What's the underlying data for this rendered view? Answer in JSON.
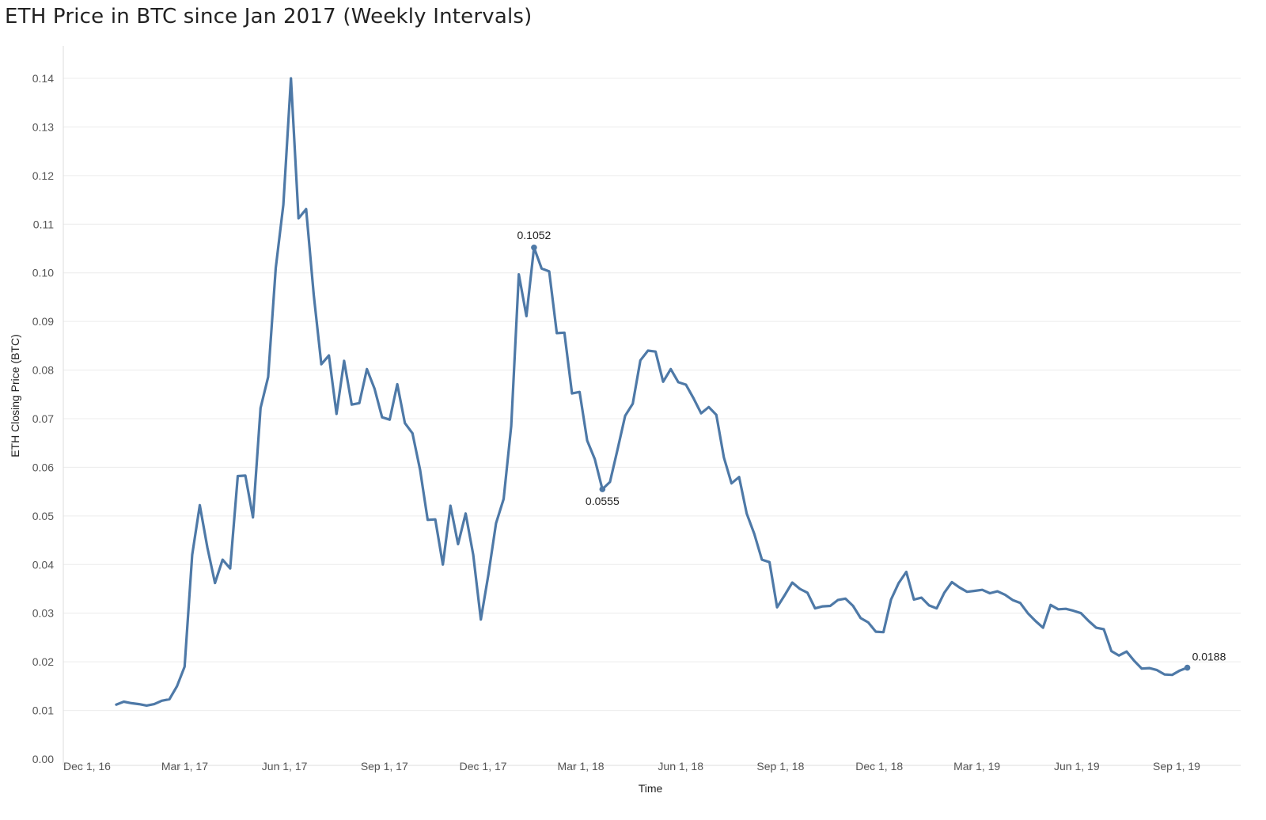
{
  "title": "ETH Price in BTC since Jan 2017 (Weekly Intervals)",
  "chart_data": {
    "type": "line",
    "title": "ETH Price in BTC since Jan 2017 (Weekly Intervals)",
    "xlabel": "Time",
    "ylabel": "ETH Closing Price (BTC)",
    "x_ticks": [
      "Dec 1, 16",
      "Mar 1, 17",
      "Jun 1, 17",
      "Sep 1, 17",
      "Dec 1, 17",
      "Mar 1, 18",
      "Jun 1, 18",
      "Sep 1, 18",
      "Dec 1, 18",
      "Mar 1, 19",
      "Jun 1, 19",
      "Sep 1, 19"
    ],
    "x_tick_dates": [
      "2016-12-01",
      "2017-03-01",
      "2017-06-01",
      "2017-09-01",
      "2017-12-01",
      "2018-03-01",
      "2018-06-01",
      "2018-09-01",
      "2018-12-01",
      "2019-03-01",
      "2019-06-01",
      "2019-09-01"
    ],
    "y_ticks": [
      "0.00",
      "0.01",
      "0.02",
      "0.03",
      "0.04",
      "0.05",
      "0.06",
      "0.07",
      "0.08",
      "0.09",
      "0.10",
      "0.11",
      "0.12",
      "0.13",
      "0.14"
    ],
    "ylim": [
      0,
      0.14
    ],
    "grid": true,
    "line_color": "#4e79a7",
    "series": [
      {
        "x": [
          "2017-01-02",
          "2017-01-09",
          "2017-01-16",
          "2017-01-23",
          "2017-01-30",
          "2017-02-06",
          "2017-02-13",
          "2017-02-20",
          "2017-02-27",
          "2017-03-06",
          "2017-03-13",
          "2017-03-20",
          "2017-03-27",
          "2017-04-03",
          "2017-04-10",
          "2017-04-17",
          "2017-04-24",
          "2017-05-01",
          "2017-05-08",
          "2017-05-15",
          "2017-05-22",
          "2017-05-29",
          "2017-06-05",
          "2017-06-12",
          "2017-06-19",
          "2017-06-26",
          "2017-07-03",
          "2017-07-10",
          "2017-07-17",
          "2017-07-24",
          "2017-07-31",
          "2017-08-07",
          "2017-08-14",
          "2017-08-21",
          "2017-08-28",
          "2017-09-04",
          "2017-09-11",
          "2017-09-18",
          "2017-09-25",
          "2017-10-02",
          "2017-10-09",
          "2017-10-16",
          "2017-10-23",
          "2017-10-30",
          "2017-11-06",
          "2017-11-13",
          "2017-11-20",
          "2017-11-27",
          "2017-12-04",
          "2017-12-11",
          "2017-12-18",
          "2017-12-25",
          "2018-01-01",
          "2018-01-08",
          "2018-01-15",
          "2018-01-22",
          "2018-01-29",
          "2018-02-05",
          "2018-02-12",
          "2018-02-19",
          "2018-02-26",
          "2018-03-05",
          "2018-03-12",
          "2018-03-19",
          "2018-03-26",
          "2018-04-02",
          "2018-04-09",
          "2018-04-16",
          "2018-04-23",
          "2018-04-30",
          "2018-05-07",
          "2018-05-14",
          "2018-05-21",
          "2018-05-28",
          "2018-06-04",
          "2018-06-11",
          "2018-06-18",
          "2018-06-25",
          "2018-07-02",
          "2018-07-09",
          "2018-07-16",
          "2018-07-23",
          "2018-07-30",
          "2018-08-06",
          "2018-08-13",
          "2018-08-20",
          "2018-08-27",
          "2018-09-03",
          "2018-09-10",
          "2018-09-17",
          "2018-09-24",
          "2018-10-01",
          "2018-10-08",
          "2018-10-15",
          "2018-10-22",
          "2018-10-29",
          "2018-11-05",
          "2018-11-12",
          "2018-11-19",
          "2018-11-26",
          "2018-12-03",
          "2018-12-10",
          "2018-12-17",
          "2018-12-24",
          "2018-12-31",
          "2019-01-07",
          "2019-01-14",
          "2019-01-21",
          "2019-01-28",
          "2019-02-04",
          "2019-02-11",
          "2019-02-18",
          "2019-02-25",
          "2019-03-04",
          "2019-03-11",
          "2019-03-18",
          "2019-03-25",
          "2019-04-01",
          "2019-04-08",
          "2019-04-15",
          "2019-04-22",
          "2019-04-29",
          "2019-05-06",
          "2019-05-13",
          "2019-05-20",
          "2019-05-27",
          "2019-06-03",
          "2019-06-10",
          "2019-06-17",
          "2019-06-24",
          "2019-07-01",
          "2019-07-08",
          "2019-07-15",
          "2019-07-22",
          "2019-07-29",
          "2019-08-05",
          "2019-08-12",
          "2019-08-19",
          "2019-08-26",
          "2019-09-02",
          "2019-09-09",
          "2019-09-16"
        ],
        "values": [
          0.0112,
          0.0118,
          0.0115,
          0.0113,
          0.011,
          0.0113,
          0.012,
          0.0123,
          0.015,
          0.019,
          0.042,
          0.0522,
          0.0435,
          0.0362,
          0.041,
          0.0392,
          0.0582,
          0.0583,
          0.0497,
          0.0722,
          0.0786,
          0.101,
          0.114,
          0.14,
          0.1112,
          0.1131,
          0.0955,
          0.0812,
          0.083,
          0.071,
          0.0819,
          0.0729,
          0.0732,
          0.0802,
          0.0762,
          0.0703,
          0.0698,
          0.0771,
          0.0691,
          0.067,
          0.0595,
          0.0492,
          0.0493,
          0.04,
          0.0521,
          0.0442,
          0.0505,
          0.042,
          0.0287,
          0.038,
          0.0485,
          0.0535,
          0.0685,
          0.0997,
          0.0911,
          0.1052,
          0.1009,
          0.1003,
          0.0876,
          0.0877,
          0.0752,
          0.0755,
          0.0655,
          0.0617,
          0.0555,
          0.057,
          0.0637,
          0.0706,
          0.0731,
          0.082,
          0.084,
          0.0838,
          0.0776,
          0.0802,
          0.0775,
          0.077,
          0.0742,
          0.0711,
          0.0724,
          0.0708,
          0.062,
          0.0567,
          0.058,
          0.0505,
          0.0463,
          0.041,
          0.0405,
          0.0312,
          0.0337,
          0.0363,
          0.035,
          0.0342,
          0.031,
          0.0314,
          0.0315,
          0.0327,
          0.033,
          0.0315,
          0.029,
          0.0281,
          0.0262,
          0.0261,
          0.0328,
          0.0362,
          0.0385,
          0.0328,
          0.0332,
          0.0316,
          0.031,
          0.0342,
          0.0364,
          0.0353,
          0.0344,
          0.0346,
          0.0348,
          0.0341,
          0.0345,
          0.0338,
          0.0327,
          0.0321,
          0.03,
          0.0284,
          0.027,
          0.0317,
          0.0308,
          0.0309,
          0.0305,
          0.03,
          0.0284,
          0.027,
          0.0267,
          0.0222,
          0.0213,
          0.0221,
          0.0202,
          0.0186,
          0.0187,
          0.0183,
          0.0174,
          0.0173,
          0.0182,
          0.0188
        ]
      }
    ],
    "annotations": [
      {
        "x": "2018-01-22",
        "value": 0.1052,
        "label": "0.1052",
        "position": "above"
      },
      {
        "x": "2018-03-26",
        "value": 0.0555,
        "label": "0.0555",
        "position": "below"
      },
      {
        "x": "2019-09-16",
        "value": 0.0188,
        "label": "0.0188",
        "position": "right"
      }
    ]
  }
}
